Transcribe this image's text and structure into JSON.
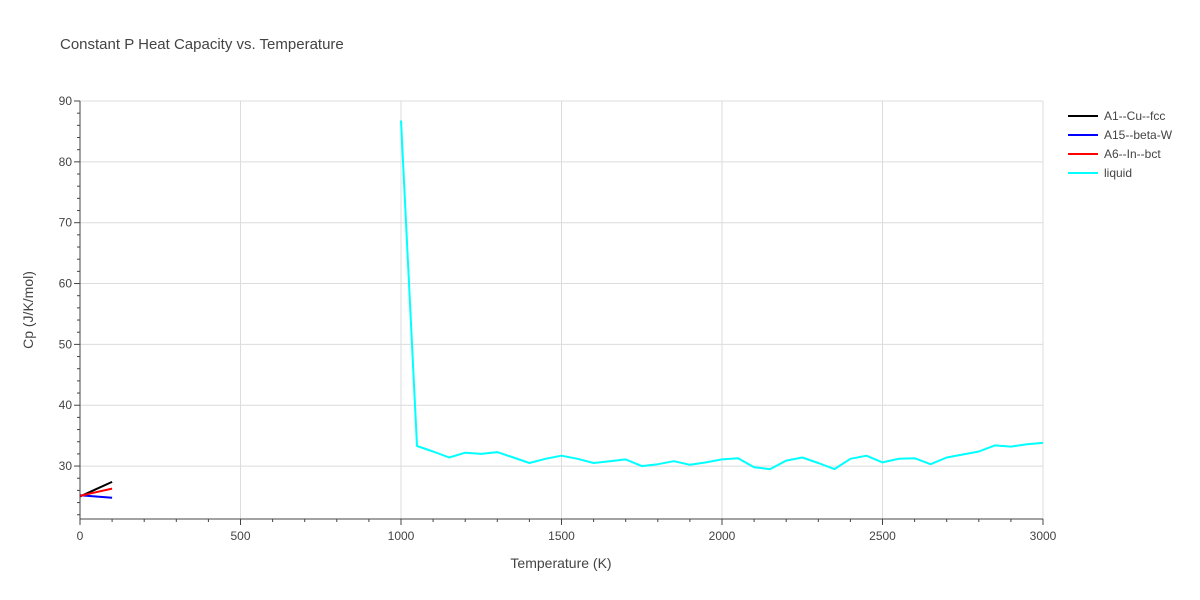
{
  "chart_data": {
    "type": "line",
    "title": "Constant P Heat Capacity vs. Temperature",
    "xlabel": "Temperature (K)",
    "ylabel": "Cp (J/K/mol)",
    "xlim": [
      0,
      3000
    ],
    "ylim": [
      21.3,
      90
    ],
    "x_ticks": [
      "0",
      "500",
      "1000",
      "1500",
      "2000",
      "2500",
      "3000"
    ],
    "y_ticks": [
      "30",
      "40",
      "50",
      "60",
      "70",
      "80",
      "90"
    ],
    "grid": true,
    "legend_position": "top-right",
    "series": [
      {
        "name": "A1--Cu--fcc",
        "color": "#000000",
        "points": [
          [
            0,
            25.0
          ],
          [
            50,
            26.2
          ],
          [
            100,
            27.4
          ]
        ]
      },
      {
        "name": "A15--beta-W",
        "color": "#0000ff",
        "points": [
          [
            0,
            25.2
          ],
          [
            50,
            25.0
          ],
          [
            100,
            24.8
          ]
        ]
      },
      {
        "name": "A6--In--bct",
        "color": "#ff0000",
        "points": [
          [
            0,
            25.1
          ],
          [
            50,
            25.7
          ],
          [
            100,
            26.3
          ]
        ]
      },
      {
        "name": "liquid",
        "color": "#00ffff",
        "points": [
          [
            1000,
            86.8
          ],
          [
            1050,
            33.3
          ],
          [
            1100,
            32.4
          ],
          [
            1150,
            31.4
          ],
          [
            1200,
            32.2
          ],
          [
            1250,
            32.0
          ],
          [
            1300,
            32.3
          ],
          [
            1350,
            31.4
          ],
          [
            1400,
            30.5
          ],
          [
            1450,
            31.2
          ],
          [
            1500,
            31.7
          ],
          [
            1550,
            31.2
          ],
          [
            1600,
            30.5
          ],
          [
            1650,
            30.8
          ],
          [
            1700,
            31.1
          ],
          [
            1750,
            30.0
          ],
          [
            1800,
            30.3
          ],
          [
            1850,
            30.8
          ],
          [
            1900,
            30.2
          ],
          [
            1950,
            30.6
          ],
          [
            2000,
            31.1
          ],
          [
            2050,
            31.3
          ],
          [
            2100,
            29.8
          ],
          [
            2150,
            29.5
          ],
          [
            2200,
            30.9
          ],
          [
            2250,
            31.4
          ],
          [
            2300,
            30.5
          ],
          [
            2350,
            29.5
          ],
          [
            2400,
            31.2
          ],
          [
            2450,
            31.7
          ],
          [
            2500,
            30.6
          ],
          [
            2550,
            31.2
          ],
          [
            2600,
            31.3
          ],
          [
            2650,
            30.3
          ],
          [
            2700,
            31.4
          ],
          [
            2750,
            31.9
          ],
          [
            2800,
            32.4
          ],
          [
            2850,
            33.4
          ],
          [
            2900,
            33.2
          ],
          [
            2950,
            33.6
          ],
          [
            3000,
            33.8
          ]
        ]
      }
    ]
  }
}
